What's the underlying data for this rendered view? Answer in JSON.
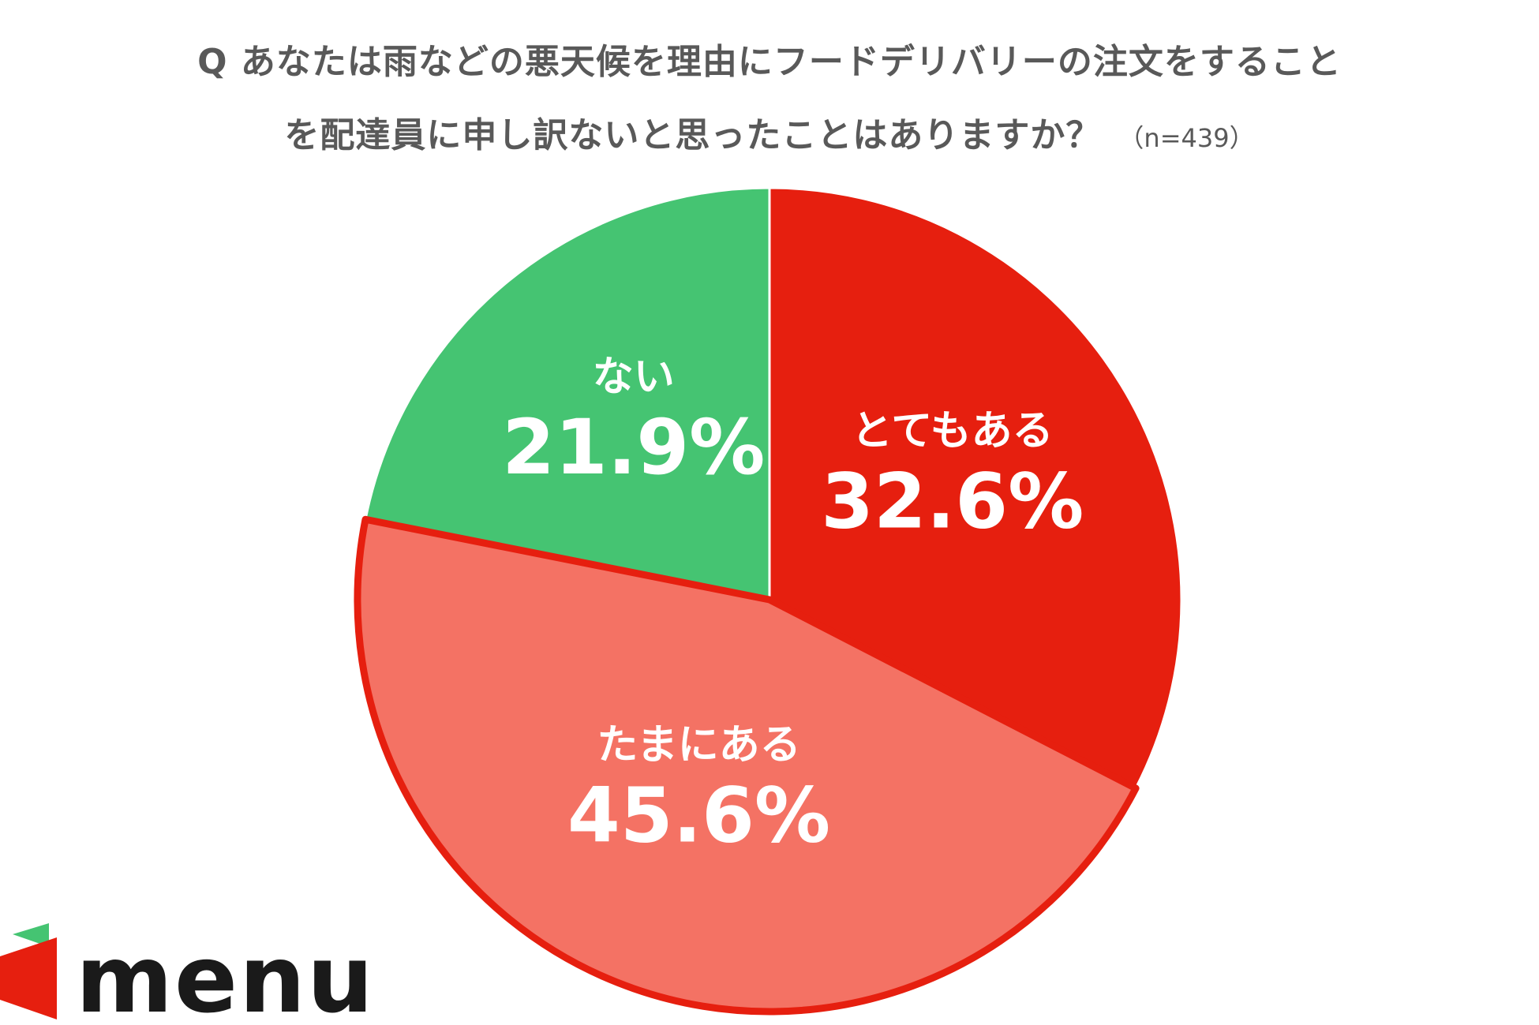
{
  "title": {
    "line1": "Q あなたは雨などの悪天候を理由にフードデリバリーの注文をすること",
    "line2": "を配達員に申し訳ないと思ったことはありますか？",
    "note": "（n=439）"
  },
  "chart_data": {
    "type": "pie",
    "slices": [
      {
        "label": "とてもある",
        "value": 32.6,
        "value_label": "32.6%",
        "color": "#e61f0f"
      },
      {
        "label": "たまにある",
        "value": 45.6,
        "value_label": "45.6%",
        "color": "#f47264"
      },
      {
        "label": "ない",
        "value": 21.9,
        "value_label": "21.9%",
        "color": "#45c472"
      }
    ],
    "start": "12 o'clock",
    "direction": "clockwise",
    "highlight_outline": "#e61f0f"
  },
  "logo": {
    "text": "menu",
    "colors": {
      "red": "#e61f0f",
      "green": "#45c472",
      "text": "#1a1a1a"
    }
  }
}
